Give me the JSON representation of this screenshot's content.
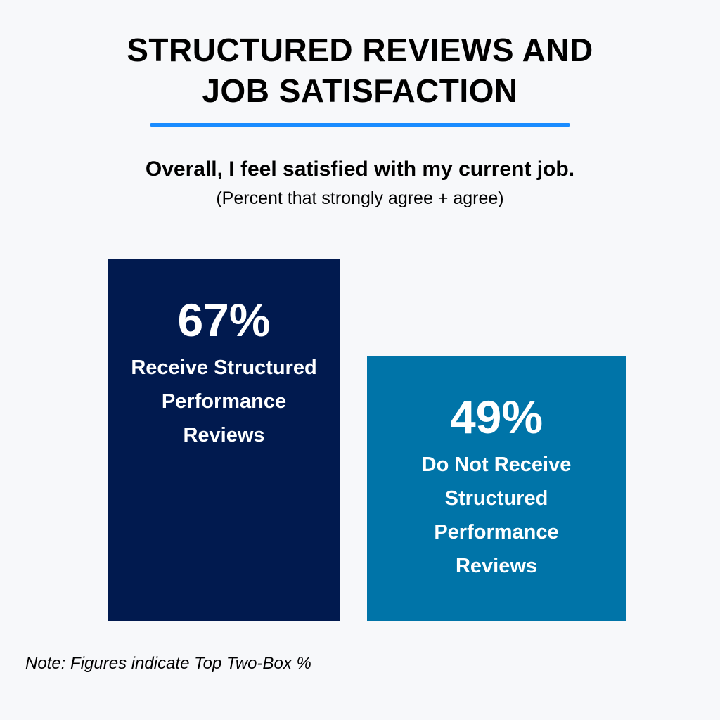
{
  "chart_data": {
    "type": "bar",
    "title_lines": [
      "STRUCTURED REVIEWS AND",
      "JOB SATISFACTION"
    ],
    "question": "Overall, I feel satisfied with my current job.",
    "subtitle": "(Percent that strongly agree + agree)",
    "ylim": [
      0,
      67
    ],
    "grid": false,
    "bars": [
      {
        "value": 67,
        "value_label": "67%",
        "label_lines": [
          "Receive Structured",
          "Performance",
          "Reviews"
        ],
        "color": "#011a4f"
      },
      {
        "value": 49,
        "value_label": "49%",
        "label_lines": [
          "Do Not Receive",
          "Structured",
          "Performance",
          "Reviews"
        ],
        "color": "#0074a8"
      }
    ],
    "note": "Note: Figures indicate Top Two-Box %"
  },
  "colors": {
    "background": "#f7f8fa",
    "accent_rule": "#1a8cff"
  }
}
